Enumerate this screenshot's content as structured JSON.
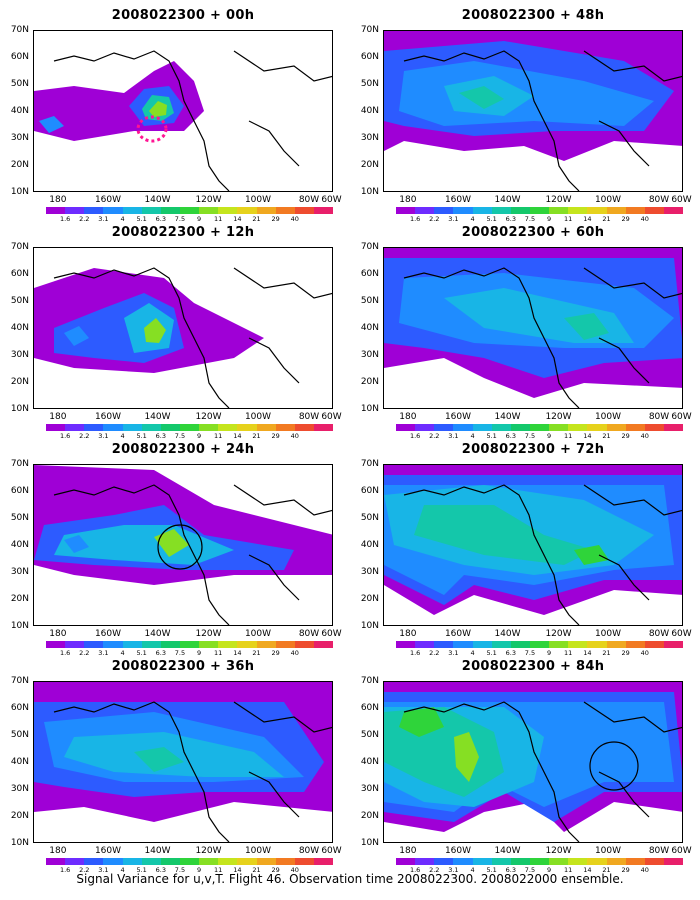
{
  "caption": "Signal Variance for u,v,T. Flight 46. Observation time 2008022300. 2008022000 ensemble.",
  "y_labels": [
    "70N",
    "60N",
    "50N",
    "40N",
    "30N",
    "20N",
    "10N"
  ],
  "x_labels": [
    "180",
    "160W",
    "140W",
    "120W",
    "100W",
    "80W",
    "60W"
  ],
  "colorbar": {
    "colors": [
      "#9f00d6",
      "#6e2cff",
      "#2d5bff",
      "#1f8cff",
      "#18b5e6",
      "#14c7aa",
      "#14c86b",
      "#2fd43a",
      "#86df23",
      "#c5e51d",
      "#e6d21c",
      "#f0a820",
      "#f27a22",
      "#ee4c2f",
      "#e81f6a"
    ],
    "labels": [
      "1.6",
      "2.2",
      "3.1",
      "4",
      "5.1",
      "6.3",
      "7.5",
      "9",
      "11",
      "14",
      "21",
      "29",
      "40"
    ]
  },
  "panels": [
    {
      "id": "00h",
      "title": "2008022300 + 00h",
      "pink_ellipse": true
    },
    {
      "id": "48h",
      "title": "2008022300 + 48h"
    },
    {
      "id": "12h",
      "title": "2008022300 + 12h"
    },
    {
      "id": "60h",
      "title": "2008022300 + 60h"
    },
    {
      "id": "24h",
      "title": "2008022300 + 24h",
      "circle": [
        146,
        82,
        22
      ]
    },
    {
      "id": "72h",
      "title": "2008022300 + 72h"
    },
    {
      "id": "36h",
      "title": "2008022300 + 36h"
    },
    {
      "id": "84h",
      "title": "2008022300 + 84h",
      "circle": [
        230,
        84,
        24
      ]
    }
  ]
}
